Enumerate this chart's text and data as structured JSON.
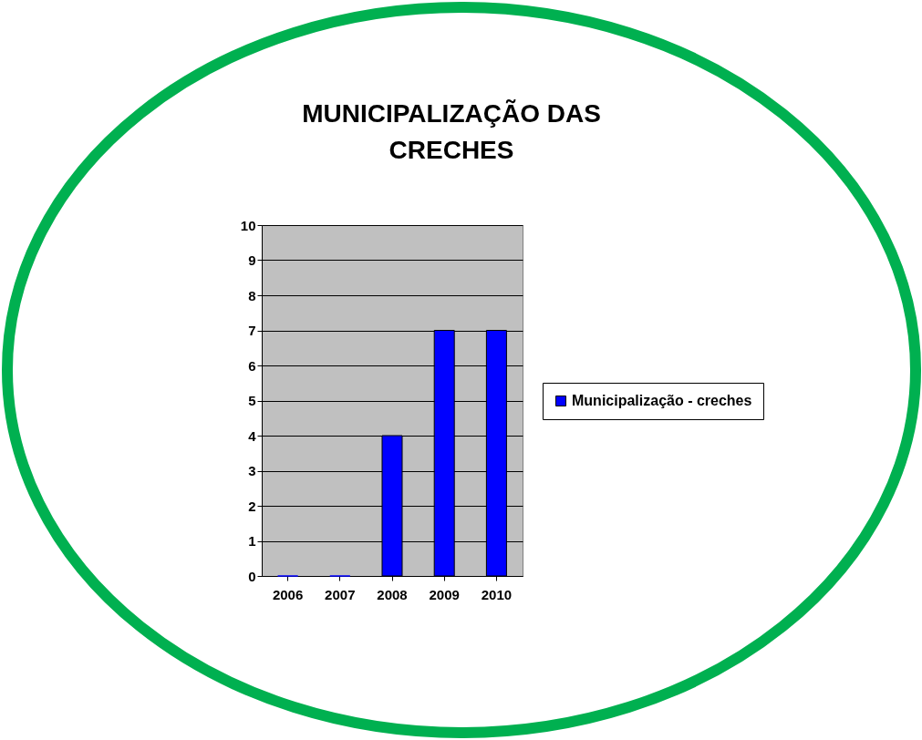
{
  "chart_data": {
    "type": "bar",
    "title": "MUNICIPALIZAÇÃO DAS CRECHES",
    "categories": [
      "2006",
      "2007",
      "2008",
      "2009",
      "2010"
    ],
    "series": [
      {
        "name": "Municipalização - creches",
        "color": "#0000ff",
        "values": [
          0,
          0,
          4,
          7,
          7
        ]
      }
    ],
    "ylim": [
      0,
      10
    ],
    "yticks": [
      0,
      1,
      2,
      3,
      4,
      5,
      6,
      7,
      8,
      9,
      10
    ],
    "grid": "y",
    "legend": "right"
  }
}
